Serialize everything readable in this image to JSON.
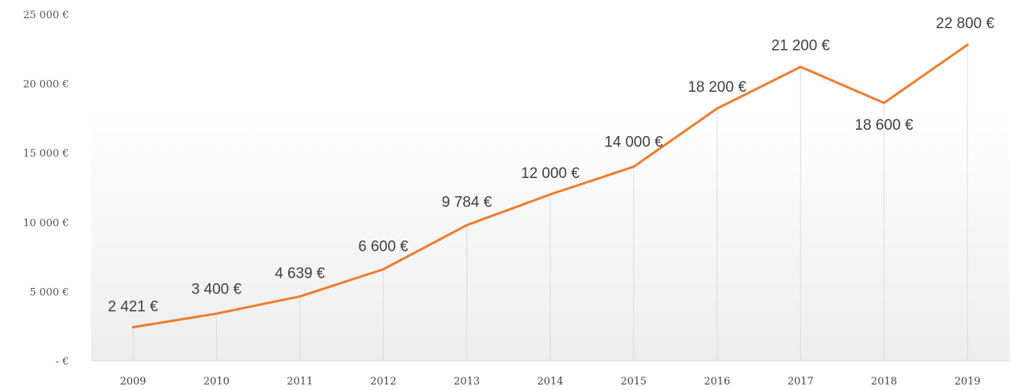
{
  "chart_data": {
    "type": "line",
    "categories": [
      "2009",
      "2010",
      "2011",
      "2012",
      "2013",
      "2014",
      "2015",
      "2016",
      "2017",
      "2018",
      "2019"
    ],
    "series": [
      {
        "values": [
          2421,
          3400,
          4639,
          6600,
          9784,
          12000,
          14000,
          18200,
          21200,
          18600,
          22800
        ]
      }
    ],
    "data_labels": [
      "2 421 €",
      "3 400 €",
      "4 639 €",
      "6 600 €",
      "9 784 €",
      "12 000 €",
      "14 000 €",
      "18 200 €",
      "21 200 €",
      "18 600 €",
      "22 800 €"
    ],
    "y_ticks": [
      {
        "value": 0,
        "label": "-  €"
      },
      {
        "value": 5000,
        "label": "5 000 €"
      },
      {
        "value": 10000,
        "label": "10 000 €"
      },
      {
        "value": 15000,
        "label": "15 000 €"
      },
      {
        "value": 20000,
        "label": "20 000 €"
      },
      {
        "value": 25000,
        "label": "25 000 €"
      }
    ],
    "ylim": [
      0,
      25000
    ],
    "title": "",
    "xlabel": "",
    "ylabel": "",
    "grid": "vertical",
    "legend": "none",
    "colors": {
      "line": "#ED7D31",
      "grid": "#dcdcdc",
      "background_gradient": "#efefef"
    }
  }
}
